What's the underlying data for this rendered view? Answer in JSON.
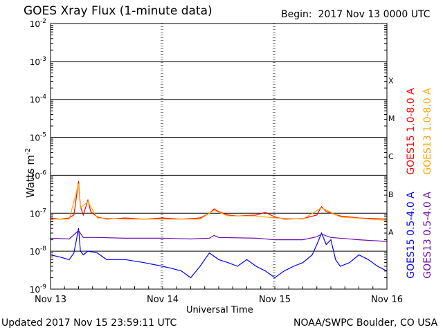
{
  "header": {
    "title": "GOES Xray Flux (1-minute data)",
    "begin_label": "Begin:",
    "begin_value": "2017 Nov 13 0000 UTC"
  },
  "footer": {
    "updated": "Updated 2017 Nov 15 23:59:11 UTC",
    "credit": "NOAA/SWPC Boulder, CO USA"
  },
  "chart_data": {
    "type": "line",
    "title": "GOES Xray Flux (1-minute data)",
    "xlabel": "Universal Time",
    "ylabel": "Watts m",
    "ylabel_superscript": "-2",
    "y_scale": "log",
    "ylim": [
      1e-09,
      0.01
    ],
    "xlim_hours": [
      0,
      72
    ],
    "x_ticks": [
      {
        "hour": 0,
        "label": "Nov 13"
      },
      {
        "hour": 24,
        "label": "Nov 14"
      },
      {
        "hour": 48,
        "label": "Nov 15"
      },
      {
        "hour": 72,
        "label": "Nov 16"
      }
    ],
    "y_ticks": [
      {
        "exp": -2,
        "base": "10",
        "sup": "-2"
      },
      {
        "exp": -3,
        "base": "10",
        "sup": "-3"
      },
      {
        "exp": -4,
        "base": "10",
        "sup": "-4"
      },
      {
        "exp": -5,
        "base": "10",
        "sup": "-5"
      },
      {
        "exp": -6,
        "base": "10",
        "sup": "-6"
      },
      {
        "exp": -7,
        "base": "10",
        "sup": "-7"
      },
      {
        "exp": -8,
        "base": "10",
        "sup": "-8"
      },
      {
        "exp": -9,
        "base": "10",
        "sup": "-9"
      }
    ],
    "flare_classes": [
      {
        "label": "X",
        "exp": -3.5
      },
      {
        "label": "M",
        "exp": -4.5
      },
      {
        "label": "C",
        "exp": -5.5
      },
      {
        "label": "B",
        "exp": -6.5
      },
      {
        "label": "A",
        "exp": -7.5
      }
    ],
    "grid": "horizontal lines at each decade, dotted vertical lines at day boundaries",
    "series": [
      {
        "name": "GOES15 1.0-8.0 A",
        "color": "#ff0000",
        "points": [
          [
            0,
            7.5e-08
          ],
          [
            2,
            7e-08
          ],
          [
            4,
            7.5e-08
          ],
          [
            5,
            9e-08
          ],
          [
            6,
            7e-07
          ],
          [
            6.4,
            1.5e-07
          ],
          [
            7,
            9e-08
          ],
          [
            8,
            2.2e-07
          ],
          [
            8.6,
            1.1e-07
          ],
          [
            10,
            8e-08
          ],
          [
            12,
            7e-08
          ],
          [
            16,
            7.5e-08
          ],
          [
            20,
            7e-08
          ],
          [
            24,
            7.5e-08
          ],
          [
            28,
            7e-08
          ],
          [
            32,
            7.5e-08
          ],
          [
            34,
            1e-07
          ],
          [
            35,
            1.3e-07
          ],
          [
            36,
            1.1e-07
          ],
          [
            38,
            9e-08
          ],
          [
            40,
            8.5e-08
          ],
          [
            44,
            9e-08
          ],
          [
            46,
            1.05e-07
          ],
          [
            48,
            8e-08
          ],
          [
            50,
            7e-08
          ],
          [
            54,
            7.2e-08
          ],
          [
            57,
            9e-08
          ],
          [
            58,
            1.5e-07
          ],
          [
            59,
            1.1e-07
          ],
          [
            62,
            8.5e-08
          ],
          [
            66,
            7.5e-08
          ],
          [
            72,
            7e-08
          ]
        ]
      },
      {
        "name": "GOES13 1.0-8.0 A",
        "color": "#ffa500",
        "points": [
          [
            0,
            7e-08
          ],
          [
            4,
            7e-08
          ],
          [
            6,
            6e-07
          ],
          [
            6.4,
            1.4e-07
          ],
          [
            8,
            2e-07
          ],
          [
            10,
            7.5e-08
          ],
          [
            16,
            7e-08
          ],
          [
            24,
            7e-08
          ],
          [
            32,
            7e-08
          ],
          [
            35,
            1.2e-07
          ],
          [
            38,
            8.5e-08
          ],
          [
            44,
            8.5e-08
          ],
          [
            48,
            7.5e-08
          ],
          [
            54,
            7e-08
          ],
          [
            58,
            1.4e-07
          ],
          [
            62,
            8e-08
          ],
          [
            72,
            6.5e-08
          ]
        ]
      },
      {
        "name": "GOES15 0.5-4.0 A",
        "color": "#0000ff",
        "points": [
          [
            0,
            8e-09
          ],
          [
            2,
            7e-09
          ],
          [
            4,
            6e-09
          ],
          [
            5,
            9e-09
          ],
          [
            6,
            4e-08
          ],
          [
            6.4,
            1e-08
          ],
          [
            7,
            8e-09
          ],
          [
            8,
            1e-08
          ],
          [
            10,
            9e-09
          ],
          [
            12,
            6e-09
          ],
          [
            16,
            6e-09
          ],
          [
            20,
            5e-09
          ],
          [
            24,
            4e-09
          ],
          [
            26,
            3.5e-09
          ],
          [
            28,
            3e-09
          ],
          [
            30,
            2e-09
          ],
          [
            32,
            4e-09
          ],
          [
            34,
            9e-09
          ],
          [
            36,
            6e-09
          ],
          [
            38,
            5e-09
          ],
          [
            40,
            4e-09
          ],
          [
            42,
            6e-09
          ],
          [
            44,
            4e-09
          ],
          [
            46,
            3e-09
          ],
          [
            48,
            2e-09
          ],
          [
            50,
            3e-09
          ],
          [
            52,
            4e-09
          ],
          [
            54,
            5e-09
          ],
          [
            56,
            8e-09
          ],
          [
            57,
            1.5e-08
          ],
          [
            58,
            3e-08
          ],
          [
            59,
            1.5e-08
          ],
          [
            60,
            2e-08
          ],
          [
            61,
            6e-09
          ],
          [
            62,
            4e-09
          ],
          [
            64,
            5e-09
          ],
          [
            66,
            8e-09
          ],
          [
            68,
            6e-09
          ],
          [
            70,
            4e-09
          ],
          [
            72,
            3e-09
          ]
        ]
      },
      {
        "name": "GOES13 0.5-4.0 A",
        "color": "#6a0dad",
        "points": [
          [
            0,
            2.2e-08
          ],
          [
            4,
            2.1e-08
          ],
          [
            6,
            3.5e-08
          ],
          [
            7,
            2.3e-08
          ],
          [
            10,
            2.3e-08
          ],
          [
            16,
            2.2e-08
          ],
          [
            24,
            2.2e-08
          ],
          [
            30,
            2.1e-08
          ],
          [
            34,
            2.2e-08
          ],
          [
            35,
            2.6e-08
          ],
          [
            36,
            2.3e-08
          ],
          [
            44,
            2.2e-08
          ],
          [
            48,
            2e-08
          ],
          [
            54,
            2e-08
          ],
          [
            57,
            2.4e-08
          ],
          [
            58,
            2.8e-08
          ],
          [
            60,
            2.3e-08
          ],
          [
            66,
            2e-08
          ],
          [
            72,
            1.8e-08
          ]
        ]
      }
    ]
  }
}
